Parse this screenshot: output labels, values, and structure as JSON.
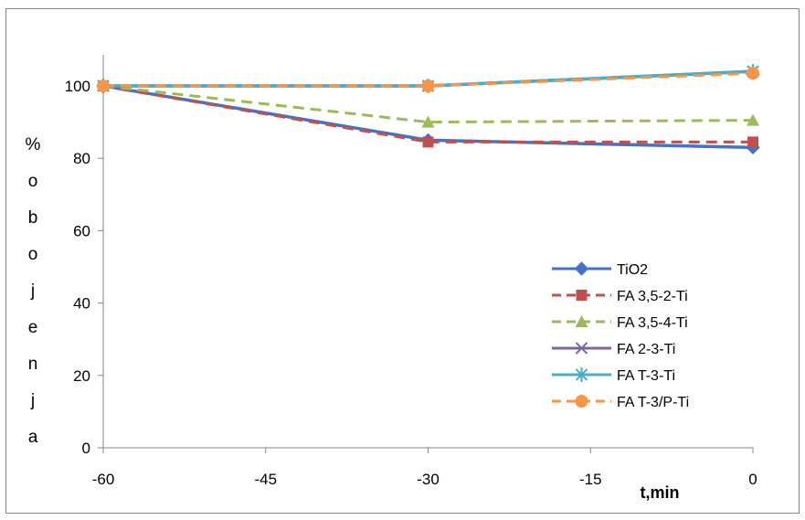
{
  "chart_data": {
    "type": "line",
    "xlabel": "t,min",
    "ylabel": "% obojenja",
    "ylabel_chars": [
      "%",
      "o",
      "b",
      "o",
      "j",
      "e",
      "n",
      "j",
      "a"
    ],
    "x_ticks": [
      "-60",
      "-45",
      "-30",
      "-15",
      "0"
    ],
    "y_ticks": [
      "0",
      "20",
      "40",
      "60",
      "80",
      "100"
    ],
    "xlim": [
      -60,
      0
    ],
    "ylim": [
      0,
      110
    ],
    "grid": false,
    "legend_position": "right",
    "x": [
      -60,
      -30,
      0
    ],
    "series": [
      {
        "name": "TiO2",
        "values": [
          100,
          85,
          83
        ],
        "color": "#4472C4",
        "marker": "diamond",
        "dash": "solid"
      },
      {
        "name": "FA 3,5-2-Ti",
        "values": [
          100,
          84.5,
          84.5
        ],
        "color": "#C0504D",
        "marker": "square",
        "dash": "dashed"
      },
      {
        "name": "FA 3,5-4-Ti",
        "values": [
          100,
          90,
          90.5
        ],
        "color": "#9BBB59",
        "marker": "triangle",
        "dash": "dashed"
      },
      {
        "name": "FA 2-3-Ti",
        "values": [
          100,
          100,
          104
        ],
        "color": "#8064A2",
        "marker": "x",
        "dash": "solid"
      },
      {
        "name": "FA T-3-Ti",
        "values": [
          100,
          100,
          104
        ],
        "color": "#4BACC6",
        "marker": "star",
        "dash": "solid"
      },
      {
        "name": "FA T-3/P-Ti",
        "values": [
          100,
          100,
          103.5
        ],
        "color": "#F79646",
        "marker": "circle",
        "dash": "dashed"
      }
    ]
  }
}
